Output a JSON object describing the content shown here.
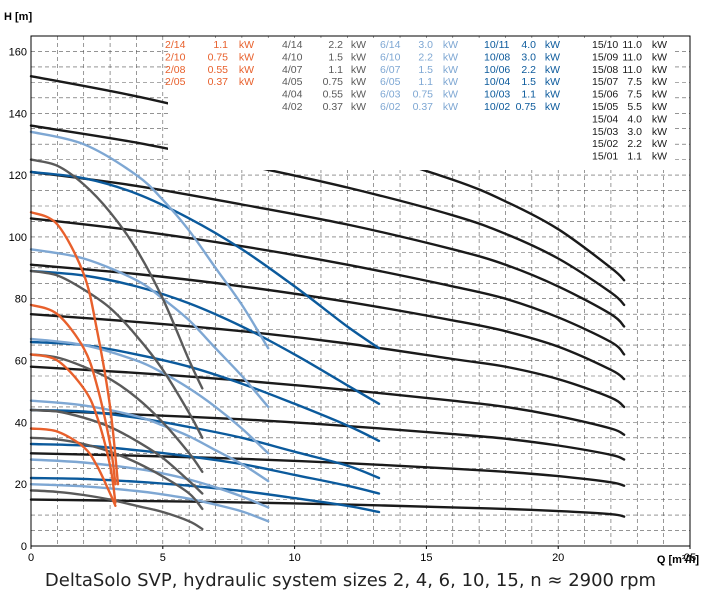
{
  "chart_data": {
    "type": "line",
    "caption": "DeltaSolo SVP, hydraulic system sizes 2, 4, 6, 10, 15, n ≈ 2900 rpm",
    "ylabel": "H [m]",
    "xlabel": "Q [m³/h]",
    "xlim": [
      0,
      25
    ],
    "ylim": [
      0,
      165
    ],
    "xticks": [
      0,
      5,
      10,
      15,
      20,
      25
    ],
    "yticks": [
      0,
      20,
      40,
      60,
      80,
      100,
      120,
      140,
      160
    ],
    "grid": true,
    "colors": {
      "s2": "#e8602c",
      "s4": "#5a5a5a",
      "s6": "#7ea7d3",
      "s10": "#0b5a9c",
      "s15": "#1a1a1a"
    },
    "legend": [
      {
        "group": "s2",
        "entries": [
          [
            "2/14",
            "1.1",
            "kW"
          ],
          [
            "2/10",
            "0.75",
            "kW"
          ],
          [
            "2/08",
            "0.55",
            "kW"
          ],
          [
            "2/05",
            "0.37",
            "kW"
          ]
        ]
      },
      {
        "group": "s4",
        "entries": [
          [
            "4/14",
            "2.2",
            "kW"
          ],
          [
            "4/10",
            "1.5",
            "kW"
          ],
          [
            "4/07",
            "1.1",
            "kW"
          ],
          [
            "4/05",
            "0.75",
            "kW"
          ],
          [
            "4/04",
            "0.55",
            "kW"
          ],
          [
            "4/02",
            "0.37",
            "kW"
          ]
        ]
      },
      {
        "group": "s6",
        "entries": [
          [
            "6/14",
            "3.0",
            "kW"
          ],
          [
            "6/10",
            "2.2",
            "kW"
          ],
          [
            "6/07",
            "1.5",
            "kW"
          ],
          [
            "6/05",
            "1.1",
            "kW"
          ],
          [
            "6/03",
            "0.75",
            "kW"
          ],
          [
            "6/02",
            "0.37",
            "kW"
          ]
        ]
      },
      {
        "group": "s10",
        "entries": [
          [
            "10/11",
            "4.0",
            "kW"
          ],
          [
            "10/08",
            "3.0",
            "kW"
          ],
          [
            "10/06",
            "2.2",
            "kW"
          ],
          [
            "10/04",
            "1.5",
            "kW"
          ],
          [
            "10/03",
            "1.1",
            "kW"
          ],
          [
            "10/02",
            "0.75",
            "kW"
          ]
        ]
      },
      {
        "group": "s15",
        "entries": [
          [
            "15/10",
            "11.0",
            "kW"
          ],
          [
            "15/09",
            "11.0",
            "kW"
          ],
          [
            "15/08",
            "11.0",
            "kW"
          ],
          [
            "15/07",
            "7.5",
            "kW"
          ],
          [
            "15/06",
            "7.5",
            "kW"
          ],
          [
            "15/05",
            "5.5",
            "kW"
          ],
          [
            "15/04",
            "4.0",
            "kW"
          ],
          [
            "15/03",
            "3.0",
            "kW"
          ],
          [
            "15/02",
            "2.2",
            "kW"
          ],
          [
            "15/01",
            "1.1",
            "kW"
          ]
        ]
      }
    ],
    "series": [
      {
        "group": "s2",
        "x": [
          0,
          1,
          2,
          2.5,
          3,
          3.3
        ],
        "y": [
          108,
          104,
          88,
          70,
          45,
          20
        ]
      },
      {
        "group": "s2",
        "x": [
          0,
          1,
          2,
          2.5,
          3,
          3.2
        ],
        "y": [
          78,
          75,
          64,
          52,
          33,
          20
        ]
      },
      {
        "group": "s2",
        "x": [
          0,
          1,
          2,
          2.5,
          3,
          3.2
        ],
        "y": [
          62,
          60,
          51,
          42,
          26,
          14
        ]
      },
      {
        "group": "s2",
        "x": [
          0,
          1,
          2,
          2.5,
          3,
          3.2
        ],
        "y": [
          38,
          37,
          32,
          26,
          17,
          13
        ]
      },
      {
        "group": "s4",
        "x": [
          0,
          1,
          2,
          3,
          4,
          5,
          6,
          6.5
        ],
        "y": [
          125,
          123,
          117,
          108,
          96,
          80,
          60,
          51
        ]
      },
      {
        "group": "s4",
        "x": [
          0,
          1,
          2,
          3,
          4,
          5,
          6,
          6.5
        ],
        "y": [
          89,
          87.5,
          83,
          77,
          68,
          57,
          43,
          35
        ]
      },
      {
        "group": "s4",
        "x": [
          0,
          1,
          2,
          3,
          4,
          5,
          6,
          6.5
        ],
        "y": [
          62,
          61,
          58,
          54,
          48,
          40,
          30,
          24
        ]
      },
      {
        "group": "s4",
        "x": [
          0,
          1,
          2,
          3,
          4,
          5,
          6,
          6.5
        ],
        "y": [
          44,
          43.5,
          41.5,
          38.5,
          34,
          28.5,
          21,
          17
        ]
      },
      {
        "group": "s4",
        "x": [
          0,
          1,
          2,
          3,
          4,
          5,
          6,
          6.5
        ],
        "y": [
          35,
          34.5,
          33,
          30.5,
          27,
          22.5,
          17,
          12
        ]
      },
      {
        "group": "s4",
        "x": [
          0,
          1,
          2,
          3,
          4,
          5,
          6,
          6.5
        ],
        "y": [
          18,
          17.5,
          16.5,
          15,
          13,
          11,
          8,
          5.5
        ]
      },
      {
        "group": "s6",
        "x": [
          0,
          2,
          4,
          5,
          6,
          7,
          8,
          9
        ],
        "y": [
          134,
          130,
          120,
          112,
          102,
          90,
          78,
          64
        ]
      },
      {
        "group": "s6",
        "x": [
          0,
          2,
          4,
          5,
          6,
          7,
          8,
          9
        ],
        "y": [
          96,
          93,
          86,
          80,
          73,
          64,
          55,
          45
        ]
      },
      {
        "group": "s6",
        "x": [
          0,
          2,
          4,
          5,
          6,
          7,
          8,
          9
        ],
        "y": [
          67,
          65,
          60,
          56,
          51,
          45,
          38,
          30
        ]
      },
      {
        "group": "s6",
        "x": [
          0,
          2,
          4,
          5,
          6,
          7,
          8,
          9
        ],
        "y": [
          47,
          45.5,
          42,
          39,
          35.5,
          31,
          26.5,
          21
        ]
      },
      {
        "group": "s6",
        "x": [
          0,
          2,
          4,
          5,
          6,
          7,
          8,
          9
        ],
        "y": [
          28,
          27,
          25,
          23.5,
          21.5,
          19,
          16,
          12.5
        ]
      },
      {
        "group": "s6",
        "x": [
          0,
          2,
          4,
          5,
          6,
          7,
          8,
          9
        ],
        "y": [
          20,
          19.3,
          17.8,
          16.7,
          15.3,
          13.4,
          11.2,
          8
        ]
      },
      {
        "group": "s10",
        "x": [
          0,
          2,
          4,
          6,
          8,
          10,
          12,
          13.2
        ],
        "y": [
          121,
          119,
          114,
          106,
          96,
          84,
          71,
          64
        ]
      },
      {
        "group": "s10",
        "x": [
          0,
          2,
          4,
          6,
          8,
          10,
          12,
          13.2
        ],
        "y": [
          89,
          87.5,
          84,
          78.5,
          71,
          62,
          52,
          46
        ]
      },
      {
        "group": "s10",
        "x": [
          0,
          2,
          4,
          6,
          8,
          10,
          12,
          13.2
        ],
        "y": [
          66,
          65,
          62,
          58,
          52.5,
          46,
          39,
          34
        ]
      },
      {
        "group": "s10",
        "x": [
          0,
          2,
          4,
          6,
          8,
          10,
          12,
          13.2
        ],
        "y": [
          44,
          43.5,
          41.5,
          38.5,
          35,
          30.5,
          26,
          22
        ]
      },
      {
        "group": "s10",
        "x": [
          0,
          2,
          4,
          6,
          8,
          10,
          12,
          13.2
        ],
        "y": [
          33,
          32.5,
          31,
          29,
          26.5,
          23,
          19.5,
          17
        ]
      },
      {
        "group": "s10",
        "x": [
          0,
          2,
          4,
          6,
          8,
          10,
          12,
          13.2
        ],
        "y": [
          22,
          21.7,
          20.8,
          19.5,
          17.8,
          15.5,
          13,
          11
        ]
      },
      {
        "group": "s15",
        "x": [
          0,
          4,
          8,
          12,
          16,
          18,
          20,
          22,
          22.5
        ],
        "y": [
          152,
          145.5,
          137.5,
          129,
          118.5,
          111.5,
          102.5,
          90,
          86
        ]
      },
      {
        "group": "s15",
        "x": [
          0,
          4,
          8,
          12,
          16,
          18,
          20,
          22,
          22.5
        ],
        "y": [
          136,
          130.5,
          123.5,
          116,
          107,
          101,
          93,
          82,
          78
        ]
      },
      {
        "group": "s15",
        "x": [
          0,
          4,
          8,
          12,
          16,
          18,
          20,
          22,
          22.5
        ],
        "y": [
          121,
          116.5,
          110.5,
          104,
          96,
          91,
          84,
          75,
          71
        ]
      },
      {
        "group": "s15",
        "x": [
          0,
          4,
          8,
          12,
          16,
          18,
          20,
          22,
          22.5
        ],
        "y": [
          106,
          102,
          97,
          91,
          84,
          80,
          74,
          66,
          62
        ]
      },
      {
        "group": "s15",
        "x": [
          0,
          4,
          8,
          12,
          16,
          18,
          20,
          22,
          22.5
        ],
        "y": [
          91,
          88,
          84,
          79,
          73,
          69.5,
          64.5,
          57,
          54
        ]
      },
      {
        "group": "s15",
        "x": [
          0,
          4,
          8,
          12,
          16,
          18,
          20,
          22,
          22.5
        ],
        "y": [
          75,
          72.5,
          69.5,
          65.5,
          60.5,
          58,
          54,
          48,
          45
        ]
      },
      {
        "group": "s15",
        "x": [
          0,
          4,
          8,
          12,
          16,
          18,
          20,
          22,
          22.5
        ],
        "y": [
          58,
          56,
          53.5,
          50.5,
          47,
          45,
          42,
          38,
          36
        ]
      },
      {
        "group": "s15",
        "x": [
          0,
          4,
          8,
          12,
          16,
          18,
          20,
          22,
          22.5
        ],
        "y": [
          44,
          42.5,
          41,
          38.8,
          36.2,
          34.7,
          32.5,
          29.5,
          28
        ]
      },
      {
        "group": "s15",
        "x": [
          0,
          4,
          8,
          12,
          16,
          18,
          20,
          22,
          22.5
        ],
        "y": [
          30,
          29.2,
          28.2,
          26.8,
          25,
          24,
          22.6,
          20.6,
          19.5
        ]
      },
      {
        "group": "s15",
        "x": [
          0,
          4,
          8,
          12,
          16,
          18,
          20,
          22,
          22.5
        ],
        "y": [
          15,
          14.6,
          14.1,
          13.4,
          12.5,
          12,
          11.3,
          10.3,
          9.5
        ]
      }
    ]
  }
}
